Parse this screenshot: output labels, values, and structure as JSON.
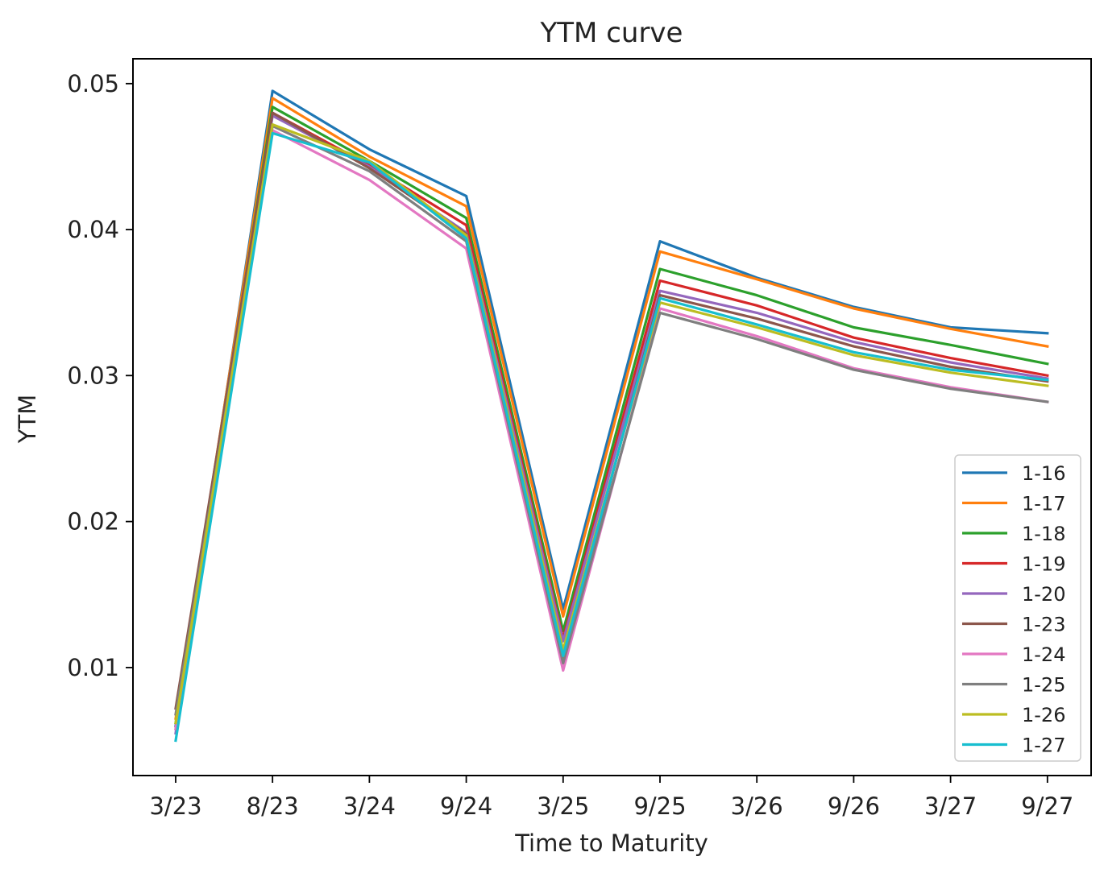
{
  "chart_data": {
    "type": "line",
    "title": "YTM curve",
    "xlabel": "Time to Maturity",
    "ylabel": "YTM",
    "categories": [
      "3/23",
      "8/23",
      "3/24",
      "9/24",
      "3/25",
      "9/25",
      "3/26",
      "9/26",
      "3/27",
      "9/27"
    ],
    "yticks": [
      "0.01",
      "0.02",
      "0.03",
      "0.04",
      "0.05"
    ],
    "ylim": [
      0.0026,
      0.0517
    ],
    "grid": false,
    "legend_position": "lower right",
    "series": [
      {
        "name": "1-16",
        "color": "#1f77b4",
        "values": [
          0.006,
          0.0495,
          0.0455,
          0.0423,
          0.014,
          0.0392,
          0.0367,
          0.0347,
          0.0333,
          0.0329
        ]
      },
      {
        "name": "1-17",
        "color": "#ff7f0e",
        "values": [
          0.0065,
          0.049,
          0.045,
          0.0416,
          0.0135,
          0.0385,
          0.0366,
          0.0346,
          0.0332,
          0.032
        ]
      },
      {
        "name": "1-18",
        "color": "#2ca02c",
        "values": [
          0.0062,
          0.0484,
          0.0447,
          0.0408,
          0.0125,
          0.0373,
          0.0355,
          0.0333,
          0.0321,
          0.0308
        ]
      },
      {
        "name": "1-19",
        "color": "#d62728",
        "values": [
          0.0058,
          0.048,
          0.0444,
          0.0403,
          0.012,
          0.0365,
          0.0348,
          0.0326,
          0.0312,
          0.03
        ]
      },
      {
        "name": "1-20",
        "color": "#9467bd",
        "values": [
          0.0055,
          0.0478,
          0.0443,
          0.0398,
          0.0118,
          0.0358,
          0.0343,
          0.0323,
          0.0309,
          0.0298
        ]
      },
      {
        "name": "1-23",
        "color": "#8c564b",
        "values": [
          0.0072,
          0.048,
          0.0442,
          0.0397,
          0.0105,
          0.0355,
          0.0339,
          0.032,
          0.0306,
          0.0296
        ]
      },
      {
        "name": "1-24",
        "color": "#e377c2",
        "values": [
          0.0058,
          0.0468,
          0.0434,
          0.0387,
          0.0098,
          0.0346,
          0.0327,
          0.0305,
          0.0292,
          0.0282
        ]
      },
      {
        "name": "1-25",
        "color": "#7f7f7f",
        "values": [
          0.0068,
          0.0471,
          0.044,
          0.0392,
          0.0103,
          0.0343,
          0.0325,
          0.0304,
          0.0291,
          0.0282
        ]
      },
      {
        "name": "1-26",
        "color": "#bcbd22",
        "values": [
          0.0062,
          0.0472,
          0.0447,
          0.0396,
          0.0112,
          0.035,
          0.0333,
          0.0314,
          0.0302,
          0.0293
        ]
      },
      {
        "name": "1-27",
        "color": "#17becf",
        "values": [
          0.005,
          0.0466,
          0.0446,
          0.0394,
          0.0108,
          0.0353,
          0.0335,
          0.0316,
          0.0304,
          0.0297
        ]
      }
    ]
  }
}
